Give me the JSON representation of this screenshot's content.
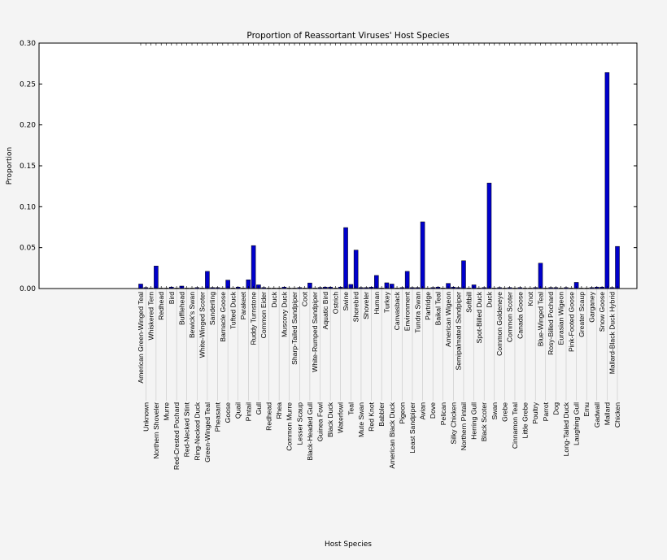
{
  "chart_data": {
    "type": "bar",
    "title": "Proportion of Reassortant Viruses' Host Species",
    "xlabel": "Host Species",
    "ylabel": "Proportion",
    "ylim": [
      0,
      0.3
    ],
    "yticks": [
      "0.00",
      "0.05",
      "0.10",
      "0.15",
      "0.20",
      "0.25",
      "0.30"
    ],
    "grid": false,
    "bar_color": "#0000cc",
    "categories": [
      "American Green-Winged Teal",
      "Unknown",
      "Whiskered Tern",
      "Northern Shoveler",
      "Redhead",
      "Murre",
      "Bird",
      "Red-Crested Pochard",
      "Bufflehead",
      "Red-Necked Stint",
      "Bewick's Swan",
      "Ring-Necked Duck",
      "White-Winged Scoter",
      "Green-Winged Teal",
      "Sanderling",
      "Pheasant",
      "Barnacle Goose",
      "Goose",
      "Tufted Duck",
      "Quail",
      "Parakeet",
      "Pintail",
      "Ruddy Turnstone",
      "Gull",
      "Common Eider",
      "Redhead",
      "Duck",
      "Rhea",
      "Muscovy Duck",
      "Common Murre",
      "Sharp-Tailed Sandpiper",
      "Lesser Scaup",
      "Coot",
      "Black-Headed Gull",
      "White-Rumped Sandpiper",
      "Guinea Fowl",
      "Aquatic Bird",
      "Black Duck",
      "Ostrich",
      "Waterfowl",
      "Swine",
      "Teal",
      "Shorebird",
      "Mute Swan",
      "Shoveler",
      "Red Knot",
      "Human",
      "Babbler",
      "Turkey",
      "American Black Duck",
      "Canvasback",
      "Pigeon",
      "Environment",
      "Least Sandpiper",
      "Tundra Swan",
      "Avian",
      "Partridge",
      "Dove",
      "Baikal Teal",
      "Pelican",
      "American Wigeon",
      "Silky Chicken",
      "Semipalmated Sandpiper",
      "Northern Pintail",
      "Softbill",
      "Herring Gull",
      "Spot-Billed Duck",
      "Black Scoter",
      "Duck",
      "Swan",
      "Common Goldeneye",
      "Grebe",
      "Common Scoter",
      "Cinnamon Teal",
      "Canada Goose",
      "Little Grebe",
      "Knot",
      "Poultry",
      "Blue-Winged Teal",
      "Parrot",
      "Rosy-Billed Pochard",
      "Dog",
      "Eurasian Wigeon",
      "Long-Tailed Duck",
      "Pink-Footed Goose",
      "Laughing Gull",
      "Greater Scaup",
      "Emu",
      "Garganey",
      "Gadwall",
      "Snow Goose",
      "Mallard",
      "Mallard-Black Duck Hybrid",
      "Chicken"
    ],
    "values": [
      0.0055,
      0.0012,
      0.0006,
      0.0275,
      0.0006,
      0.0006,
      0.0018,
      0.0006,
      0.003,
      0.0006,
      0.0006,
      0.0012,
      0.0006,
      0.021,
      0.0012,
      0.0012,
      0.0006,
      0.0103,
      0.0006,
      0.0018,
      0.0006,
      0.0107,
      0.0525,
      0.0045,
      0.0012,
      0.0006,
      0.0006,
      0.0006,
      0.0018,
      0.0006,
      0.0006,
      0.0012,
      0.0006,
      0.0068,
      0.0006,
      0.0012,
      0.0018,
      0.0018,
      0.0006,
      0.0018,
      0.0745,
      0.005,
      0.047,
      0.0012,
      0.0012,
      0.0018,
      0.016,
      0.0006,
      0.007,
      0.0055,
      0.0006,
      0.0012,
      0.021,
      0.0012,
      0.0012,
      0.0815,
      0.0006,
      0.0012,
      0.0018,
      0.0006,
      0.0063,
      0.0018,
      0.0012,
      0.034,
      0.0006,
      0.0045,
      0.0006,
      0.0012,
      0.129,
      0.0006,
      0.0012,
      0.0006,
      0.0012,
      0.0006,
      0.0012,
      0.0006,
      0.0006,
      0.0012,
      0.031,
      0.0006,
      0.0012,
      0.0012,
      0.0006,
      0.0012,
      0.0006,
      0.0075,
      0.0006,
      0.0006,
      0.0012,
      0.0018,
      0.0018,
      0.264,
      0.0012,
      0.0515
    ]
  }
}
